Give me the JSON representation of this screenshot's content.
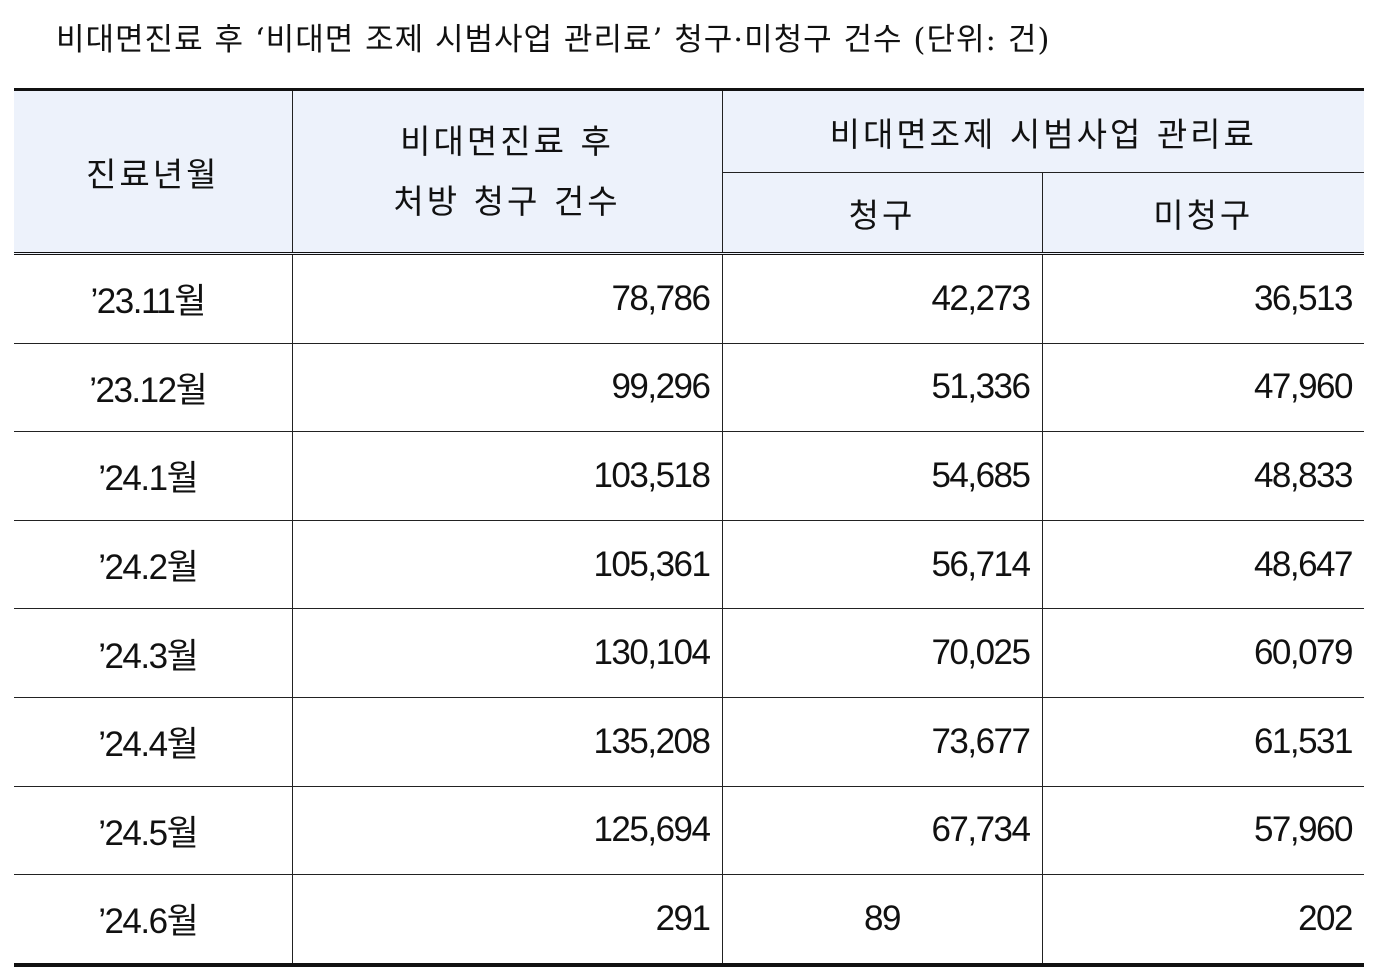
{
  "title": "비대면진료 후 ‘비대면 조제 시범사업 관리료’ 청구·미청구 건수 (단위: 건)",
  "table": {
    "headers": {
      "month": "진료년월",
      "total_line1": "비대면진료 후",
      "total_line2": "처방 청구 건수",
      "group": "비대면조제 시범사업 관리료",
      "claimed": "청구",
      "unclaimed": "미청구"
    },
    "rows": [
      {
        "month": "’23.11월",
        "total": "78,786",
        "claimed": "42,273",
        "unclaimed": "36,513"
      },
      {
        "month": "’23.12월",
        "total": "99,296",
        "claimed": "51,336",
        "unclaimed": "47,960"
      },
      {
        "month": "’24.1월",
        "total": "103,518",
        "claimed": "54,685",
        "unclaimed": "48,833"
      },
      {
        "month": "’24.2월",
        "total": "105,361",
        "claimed": "56,714",
        "unclaimed": "48,647"
      },
      {
        "month": "’24.3월",
        "total": "130,104",
        "claimed": "70,025",
        "unclaimed": "60,079"
      },
      {
        "month": "’24.4월",
        "total": "135,208",
        "claimed": "73,677",
        "unclaimed": "61,531"
      },
      {
        "month": "’24.5월",
        "total": "125,694",
        "claimed": "67,734",
        "unclaimed": "57,960"
      },
      {
        "month": "’24.6월",
        "total": "291",
        "claimed": "89",
        "unclaimed": "202"
      }
    ]
  },
  "colors": {
    "header_bg": "#edf2fb",
    "border": "#111111"
  }
}
